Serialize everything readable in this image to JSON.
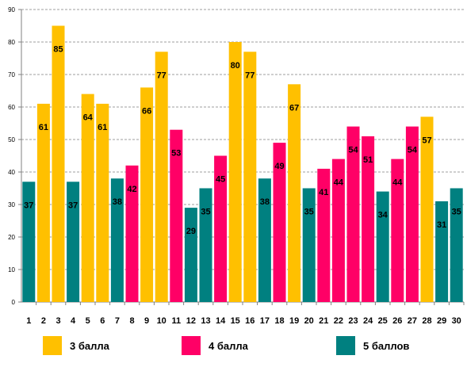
{
  "chart_data": {
    "type": "bar",
    "categories": [
      "1",
      "2",
      "3",
      "4",
      "5",
      "6",
      "7",
      "8",
      "9",
      "10",
      "11",
      "12",
      "13",
      "14",
      "15",
      "16",
      "17",
      "18",
      "19",
      "20",
      "21",
      "22",
      "23",
      "24",
      "25",
      "26",
      "27",
      "28",
      "29",
      "30"
    ],
    "values": [
      37,
      61,
      85,
      37,
      64,
      61,
      38,
      42,
      66,
      77,
      53,
      29,
      35,
      45,
      80,
      77,
      38,
      49,
      67,
      35,
      41,
      44,
      54,
      51,
      34,
      44,
      54,
      57,
      31,
      35
    ],
    "groups": [
      "5 баллов",
      "3 балла",
      "3 балла",
      "5 баллов",
      "3 балла",
      "3 балла",
      "5 баллов",
      "4 балла",
      "3 балла",
      "3 балла",
      "4 балла",
      "5 баллов",
      "5 баллов",
      "4 балла",
      "3 балла",
      "3 балла",
      "5 баллов",
      "4 балла",
      "3 балла",
      "5 баллов",
      "4 балла",
      "4 балла",
      "4 балла",
      "4 балла",
      "5 баллов",
      "4 балла",
      "4 балла",
      "3 балла",
      "5 баллов",
      "5 баллов"
    ],
    "ylim": [
      0,
      90
    ],
    "yticks": [
      0,
      10,
      20,
      30,
      40,
      50,
      60,
      70,
      80,
      90
    ],
    "grid": true,
    "legend_position": "bottom",
    "series": [
      {
        "name": "3 балла",
        "color": "#FFC000"
      },
      {
        "name": "4 балла",
        "color": "#FF0066"
      },
      {
        "name": "5 баллов",
        "color": "#008080"
      }
    ]
  }
}
